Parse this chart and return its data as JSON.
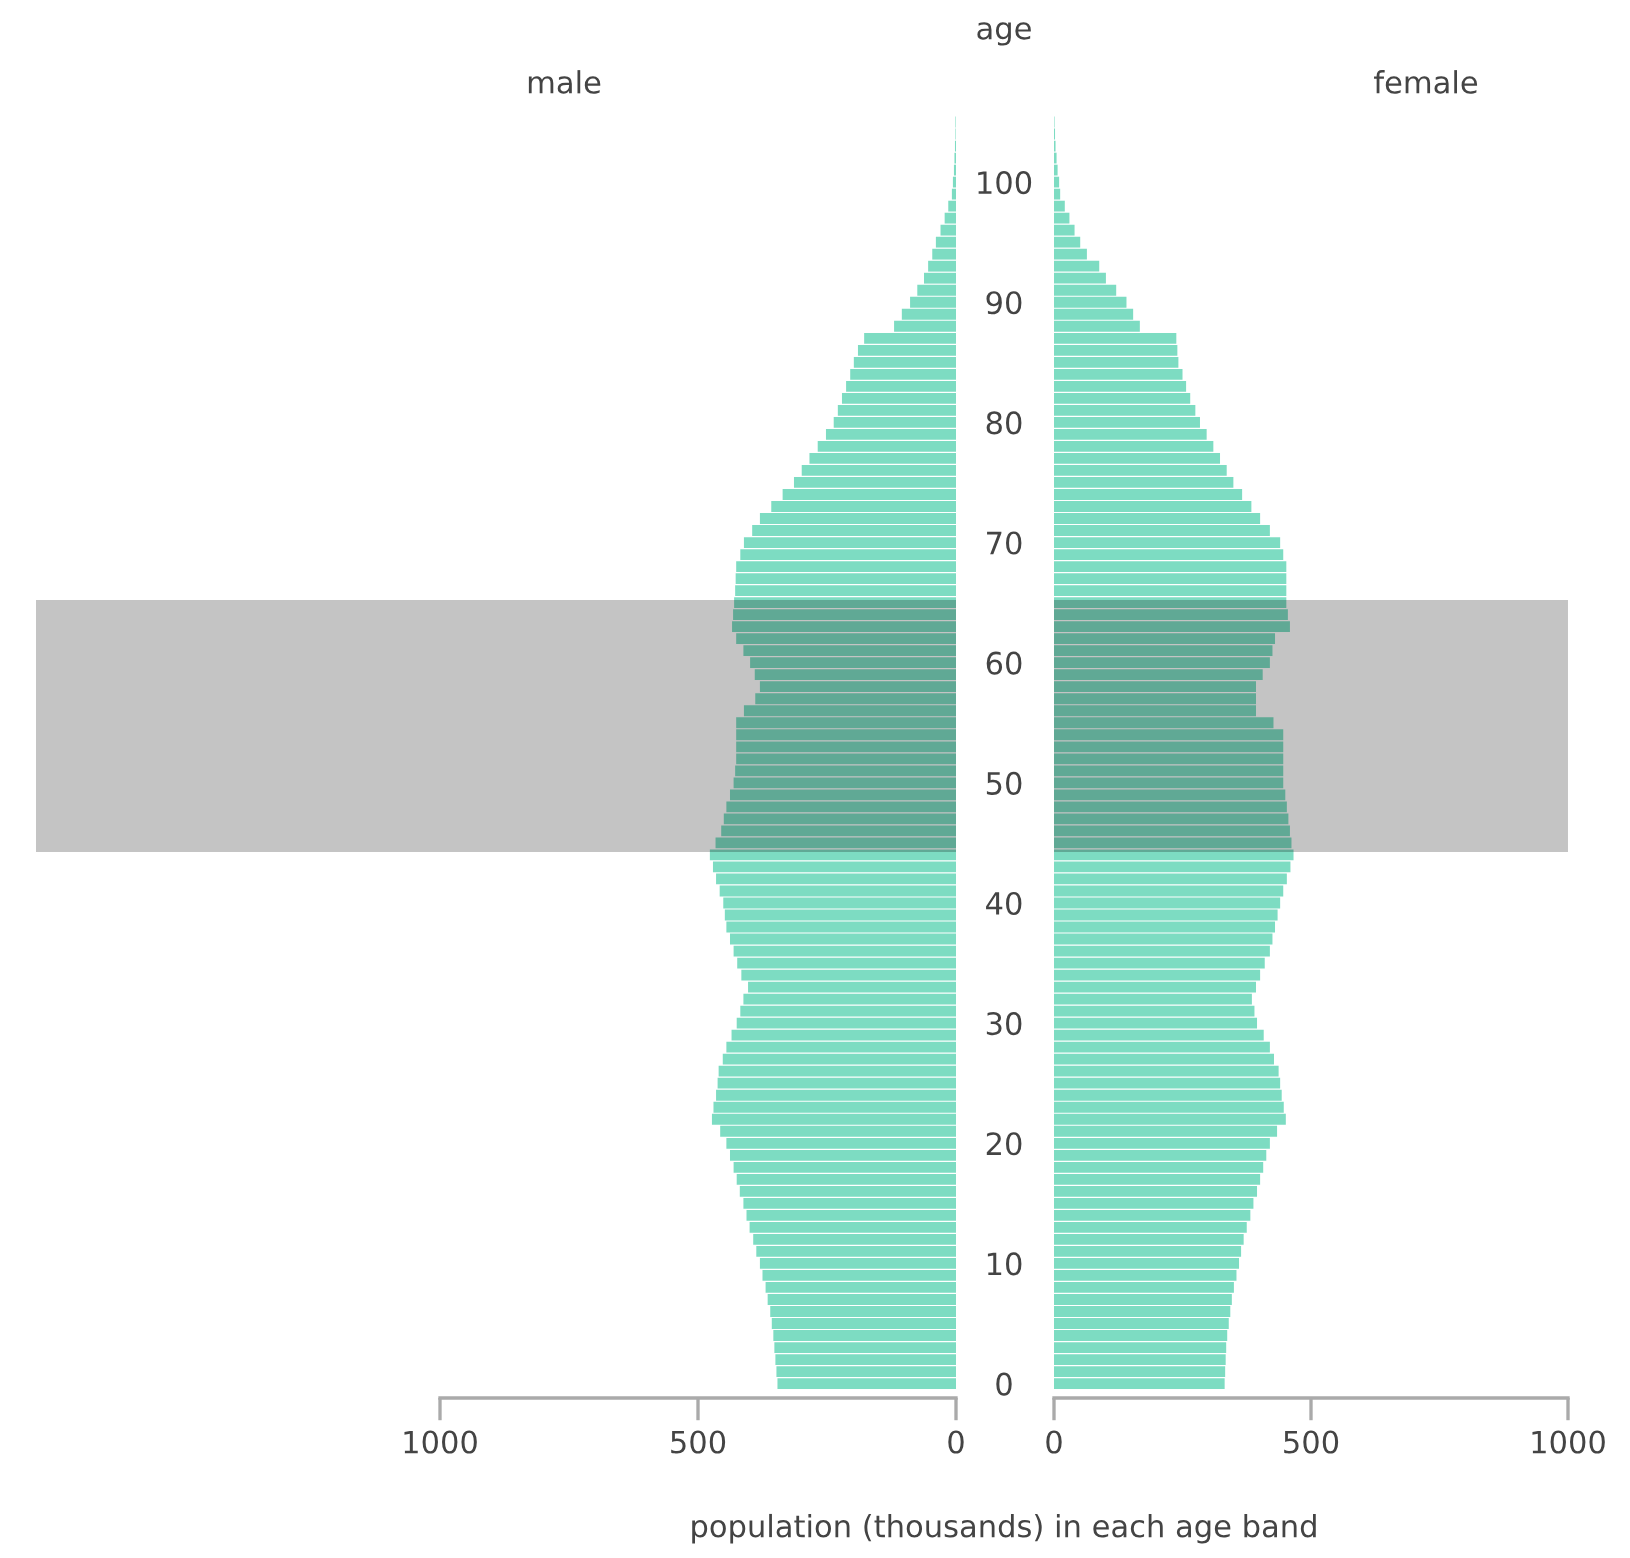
{
  "chart_data": [
    {
      "type": "bar",
      "orientation": "horizontal",
      "title": "male",
      "tick_labels": "x",
      "categories": [
        null,
        null,
        null,
        null,
        null,
        "100",
        null,
        null,
        null,
        null,
        null,
        null,
        null,
        null,
        null,
        "90",
        null,
        null,
        null,
        null,
        null,
        null,
        null,
        null,
        null,
        "80",
        null,
        null,
        null,
        null,
        null,
        null,
        null,
        null,
        null,
        "70",
        null,
        null,
        null,
        null,
        null,
        null,
        null,
        null,
        null,
        "60",
        null,
        null,
        null,
        null,
        null,
        null,
        null,
        null,
        null,
        "50",
        null,
        null,
        null,
        null,
        null,
        null,
        null,
        null,
        null,
        "40",
        null,
        null,
        null,
        null,
        null,
        null,
        null,
        null,
        null,
        "30",
        null,
        null,
        null,
        null,
        null,
        null,
        null,
        null,
        null,
        "20",
        null,
        null,
        null,
        null,
        null,
        null,
        null,
        null,
        null,
        "10",
        null,
        null,
        null,
        null,
        null,
        null,
        null,
        null,
        null,
        "0"
      ],
      "values": [
        1,
        1,
        2,
        3,
        4,
        6,
        8,
        15,
        22,
        30,
        39,
        46,
        54,
        62,
        75,
        89,
        105,
        120,
        178,
        190,
        198,
        205,
        213,
        221,
        229,
        237,
        252,
        268,
        284,
        299,
        314,
        336,
        358,
        380,
        395,
        411,
        418,
        426,
        427,
        428,
        430,
        432,
        434,
        426,
        412,
        399,
        390,
        380,
        389,
        411,
        426,
        426,
        426,
        426,
        428,
        431,
        438,
        445,
        450,
        455,
        466,
        477,
        471,
        465,
        458,
        451,
        448,
        445,
        438,
        431,
        424,
        416,
        403,
        412,
        418,
        425,
        435,
        445,
        452,
        460,
        462,
        465,
        470,
        473,
        457,
        445,
        438,
        431,
        425,
        419,
        412,
        406,
        400,
        393,
        387,
        380,
        375,
        369,
        365,
        360,
        357,
        354,
        352,
        350,
        348,
        346
      ],
      "color": "#7ddcc2",
      "xlim": [
        1000,
        0
      ],
      "xticks": [
        1000,
        500,
        0
      ]
    },
    {
      "type": "bar",
      "orientation": "horizontal",
      "title": "female",
      "xlabel": "population (thousands) in each age band",
      "ylabel": "age",
      "categories": [
        null,
        null,
        null,
        null,
        null,
        "100",
        null,
        null,
        null,
        null,
        null,
        null,
        null,
        null,
        null,
        "90",
        null,
        null,
        null,
        null,
        null,
        null,
        null,
        null,
        null,
        "80",
        null,
        null,
        null,
        null,
        null,
        null,
        null,
        null,
        null,
        "70",
        null,
        null,
        null,
        null,
        null,
        null,
        null,
        null,
        null,
        "60",
        null,
        null,
        null,
        null,
        null,
        null,
        null,
        null,
        null,
        "50",
        null,
        null,
        null,
        null,
        null,
        null,
        null,
        null,
        null,
        "40",
        null,
        null,
        null,
        null,
        null,
        null,
        null,
        null,
        null,
        "30",
        null,
        null,
        null,
        null,
        null,
        null,
        null,
        null,
        null,
        "20",
        null,
        null,
        null,
        null,
        null,
        null,
        null,
        null,
        null,
        "10",
        null,
        null,
        null,
        null,
        null,
        null,
        null,
        null,
        null,
        "0"
      ],
      "values": [
        1,
        2,
        3,
        5,
        7,
        10,
        12,
        21,
        30,
        40,
        51,
        64,
        88,
        101,
        121,
        141,
        154,
        167,
        238,
        240,
        242,
        250,
        257,
        265,
        275,
        284,
        297,
        310,
        323,
        336,
        349,
        366,
        384,
        401,
        420,
        440,
        446,
        452,
        452,
        452,
        452,
        455,
        459,
        430,
        425,
        420,
        406,
        393,
        393,
        393,
        427,
        446,
        446,
        446,
        446,
        446,
        450,
        453,
        456,
        459,
        462,
        466,
        460,
        453,
        446,
        440,
        435,
        430,
        425,
        420,
        410,
        401,
        393,
        385,
        390,
        395,
        408,
        420,
        428,
        437,
        440,
        443,
        447,
        451,
        434,
        420,
        413,
        407,
        401,
        395,
        388,
        382,
        375,
        369,
        364,
        360,
        355,
        350,
        346,
        343,
        340,
        337,
        335,
        334,
        333,
        332
      ],
      "color": "#7ddcc2",
      "xlim": [
        0,
        1000
      ],
      "xticks": [
        0,
        500,
        1000
      ]
    }
  ]
}
